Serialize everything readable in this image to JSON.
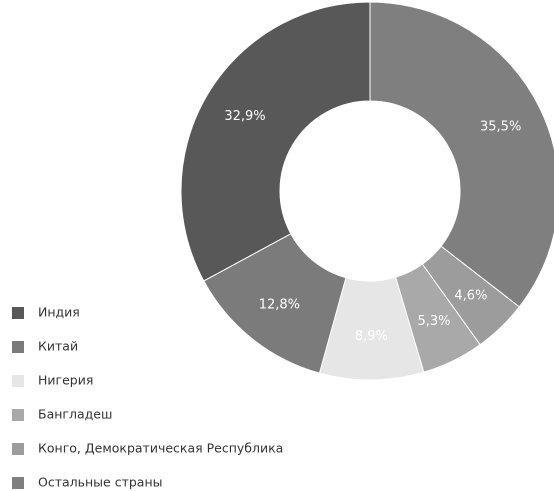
{
  "chart_data": {
    "type": "donut",
    "categories": [
      "Индия",
      "Китай",
      "Нигерия",
      "Бангладеш",
      "Конго, Демократическая Республика",
      "Остальные страны"
    ],
    "values": [
      32.9,
      12.8,
      8.9,
      5.3,
      4.6,
      35.5
    ],
    "value_labels": [
      "32,9%",
      "12,8%",
      "8,9%",
      "5,3%",
      "4,6%",
      "35,5%"
    ],
    "colors": [
      "#585858",
      "#7b7b7b",
      "#e6e6e6",
      "#a9a9a9",
      "#9c9c9c",
      "#7f7f7f"
    ],
    "direction": "counterclockwise",
    "legend": "bottom-left"
  }
}
